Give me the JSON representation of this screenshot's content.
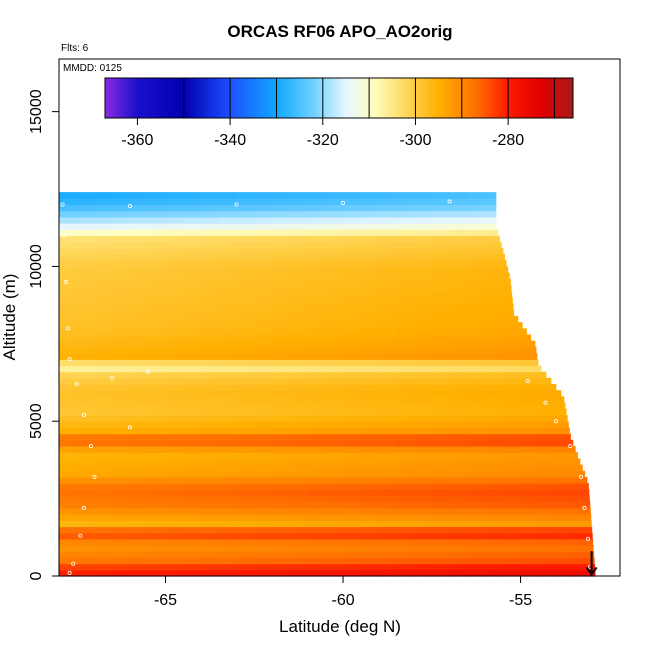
{
  "chart_data": {
    "type": "heatmap",
    "title": "ORCAS RF06 APO_AO2orig",
    "annotations": {
      "flights": "Flts: 6",
      "mmdd": "MMDD: 0125"
    },
    "xlabel": "Latitude (deg N)",
    "ylabel": "Altitude (m)",
    "xlim": [
      -68,
      -52.2
    ],
    "ylim": [
      0,
      16700
    ],
    "x_ticks": [
      -65,
      -60,
      -55
    ],
    "x_tick_labels": [
      "-65",
      "-60",
      "-55"
    ],
    "y_ticks": [
      0,
      5000,
      10000,
      15000
    ],
    "y_tick_labels": [
      "0",
      "5000",
      "10000",
      "15000"
    ],
    "colorbar": {
      "min": -367,
      "max": -266,
      "ticks": [
        -360,
        -340,
        -320,
        -300,
        -280
      ],
      "tick_labels": [
        "-360",
        "-340",
        "-320",
        "-300",
        "-280"
      ],
      "boundaries": [
        -350,
        -340,
        -330,
        -320,
        -310,
        -300,
        -290,
        -280,
        -270
      ],
      "stops": [
        {
          "v": -367,
          "color": "#8a2be2"
        },
        {
          "v": -360,
          "color": "#1a10cc"
        },
        {
          "v": -350,
          "color": "#0000b0"
        },
        {
          "v": -340,
          "color": "#1e50ff"
        },
        {
          "v": -330,
          "color": "#10a8ff"
        },
        {
          "v": -322,
          "color": "#70d0ff"
        },
        {
          "v": -315,
          "color": "#e6f6ff"
        },
        {
          "v": -309,
          "color": "#ffffc0"
        },
        {
          "v": -302,
          "color": "#ffd75a"
        },
        {
          "v": -295,
          "color": "#ffb000"
        },
        {
          "v": -287,
          "color": "#ff7000"
        },
        {
          "v": -280,
          "color": "#ff1a00"
        },
        {
          "v": -273,
          "color": "#e00000"
        },
        {
          "v": -266,
          "color": "#a81a1a"
        }
      ]
    },
    "profile": [
      {
        "alt": 0,
        "value": -278
      },
      {
        "alt": 200,
        "value": -279
      },
      {
        "alt": 500,
        "value": -286
      },
      {
        "alt": 1000,
        "value": -290
      },
      {
        "alt": 1400,
        "value": -281
      },
      {
        "alt": 1700,
        "value": -294
      },
      {
        "alt": 2300,
        "value": -287
      },
      {
        "alt": 2800,
        "value": -285
      },
      {
        "alt": 3300,
        "value": -292
      },
      {
        "alt": 4000,
        "value": -294
      },
      {
        "alt": 4400,
        "value": -283
      },
      {
        "alt": 4700,
        "value": -293
      },
      {
        "alt": 5300,
        "value": -297
      },
      {
        "alt": 6000,
        "value": -296
      },
      {
        "alt": 6600,
        "value": -300
      },
      {
        "alt": 6800,
        "value": -309
      },
      {
        "alt": 7000,
        "value": -293
      },
      {
        "alt": 8000,
        "value": -296
      },
      {
        "alt": 9000,
        "value": -297
      },
      {
        "alt": 10000,
        "value": -298
      },
      {
        "alt": 10900,
        "value": -302
      },
      {
        "alt": 11300,
        "value": -313
      },
      {
        "alt": 11700,
        "value": -320
      },
      {
        "alt": 12000,
        "value": -325
      },
      {
        "alt": 12300,
        "value": -327
      }
    ],
    "lat_gradient": 4,
    "coverage_edge": [
      {
        "alt": 0,
        "lat": -52.9
      },
      {
        "alt": 3000,
        "lat": -53.1
      },
      {
        "alt": 4500,
        "lat": -53.6
      },
      {
        "alt": 5800,
        "lat": -53.8
      },
      {
        "alt": 6800,
        "lat": -54.5
      },
      {
        "alt": 7500,
        "lat": -54.6
      },
      {
        "alt": 8500,
        "lat": -55.2
      },
      {
        "alt": 9600,
        "lat": -55.3
      },
      {
        "alt": 10500,
        "lat": -55.5
      },
      {
        "alt": 11300,
        "lat": -55.7
      },
      {
        "alt": 12300,
        "lat": -55.7
      }
    ],
    "flight_track": [
      {
        "lat": -67.9,
        "alt": 12000
      },
      {
        "lat": -67.85,
        "alt": 11000
      },
      {
        "lat": -67.8,
        "alt": 9500
      },
      {
        "lat": -67.75,
        "alt": 8000
      },
      {
        "lat": -67.7,
        "alt": 7000
      },
      {
        "lat": -67.5,
        "alt": 6200
      },
      {
        "lat": -67.3,
        "alt": 5200
      },
      {
        "lat": -67.1,
        "alt": 4200
      },
      {
        "lat": -67.0,
        "alt": 3200
      },
      {
        "lat": -67.3,
        "alt": 2200
      },
      {
        "lat": -67.4,
        "alt": 1300
      },
      {
        "lat": -67.6,
        "alt": 400
      },
      {
        "lat": -67.7,
        "alt": 100
      },
      {
        "lat": -66.5,
        "alt": 6400
      },
      {
        "lat": -66.0,
        "alt": 4800
      },
      {
        "lat": -65.5,
        "alt": 6600
      },
      {
        "lat": -55.2,
        "alt": 12150
      },
      {
        "lat": -57,
        "alt": 12100
      },
      {
        "lat": -60,
        "alt": 12050
      },
      {
        "lat": -63,
        "alt": 12000
      },
      {
        "lat": -66,
        "alt": 11950
      },
      {
        "lat": -54.8,
        "alt": 6300
      },
      {
        "lat": -54.3,
        "alt": 5600
      },
      {
        "lat": -54.0,
        "alt": 5000
      },
      {
        "lat": -53.6,
        "alt": 4200
      },
      {
        "lat": -53.3,
        "alt": 3200
      },
      {
        "lat": -53.2,
        "alt": 2200
      },
      {
        "lat": -53.1,
        "alt": 1200
      },
      {
        "lat": -53.05,
        "alt": 300
      }
    ],
    "arrow": {
      "lat": -53.0,
      "alt_from": 800,
      "alt_to": 50
    }
  }
}
